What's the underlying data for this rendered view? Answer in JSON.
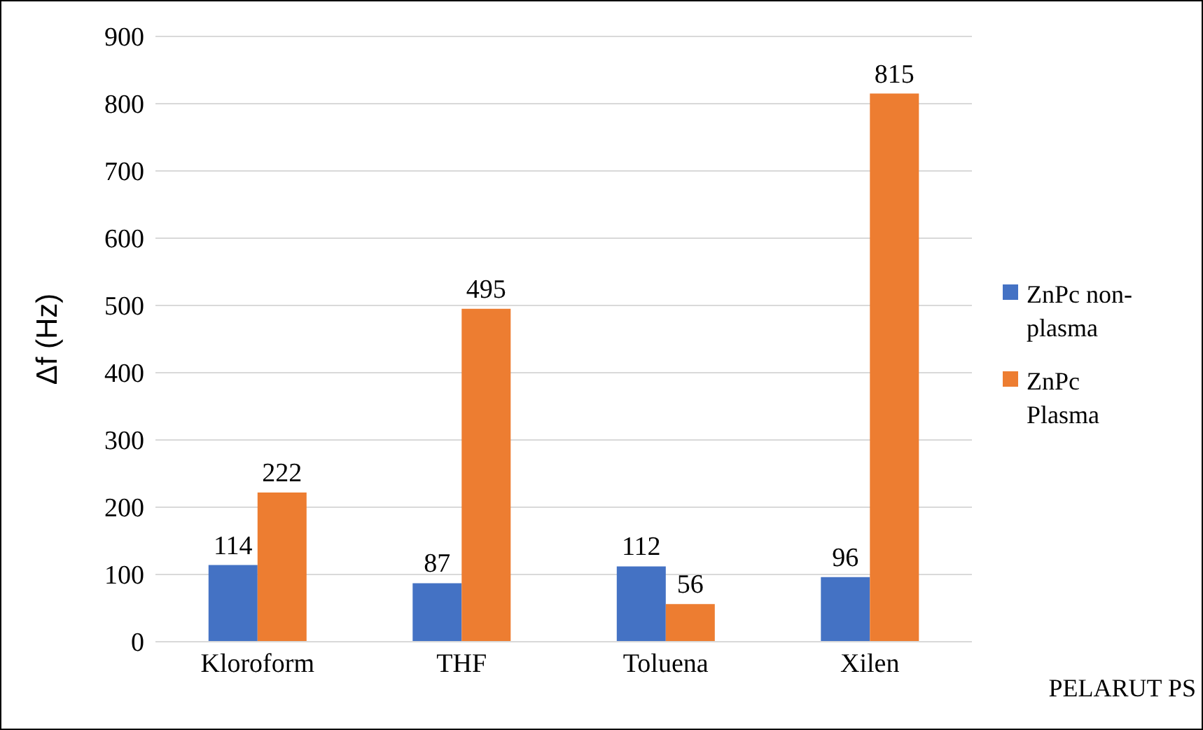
{
  "chart_data": {
    "type": "bar",
    "ylabel": "Δf (Hz)",
    "xlabel": "PELARUT PS",
    "categories": [
      "Kloroform",
      "THF",
      "Toluena",
      "Xilen"
    ],
    "series": [
      {
        "name": "ZnPc non-plasma",
        "color": "#4472c4",
        "values": [
          114,
          87,
          112,
          96
        ]
      },
      {
        "name": "ZnPc Plasma",
        "color": "#ed7d31",
        "values": [
          222,
          495,
          56,
          815
        ]
      }
    ],
    "ylim": [
      0,
      900
    ],
    "yticks": [
      0,
      100,
      200,
      300,
      400,
      500,
      600,
      700,
      800,
      900
    ],
    "grid": "y",
    "legend": "right",
    "data_labels": true
  }
}
